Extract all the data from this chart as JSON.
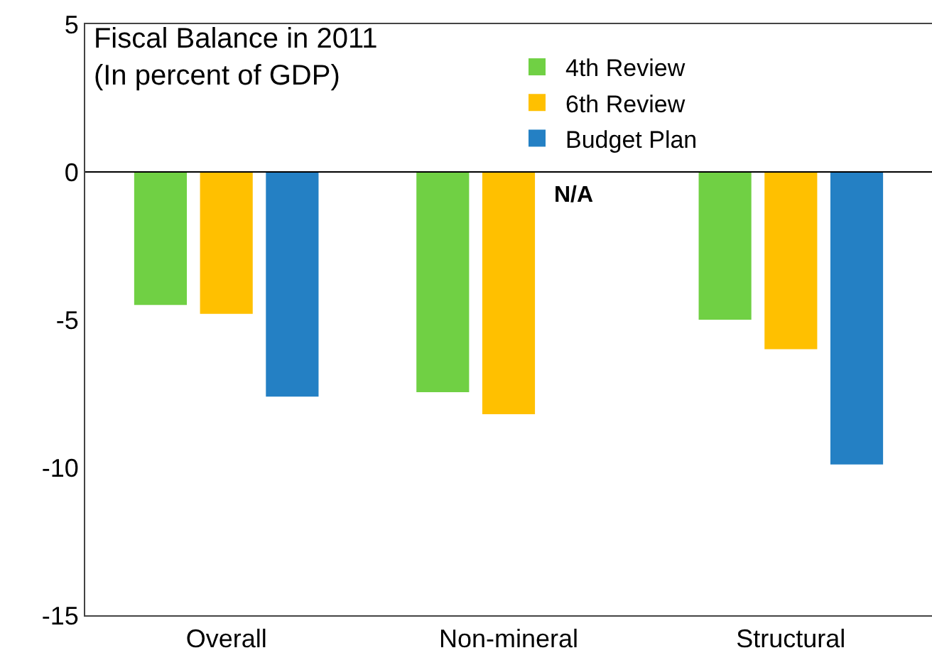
{
  "chart_data": {
    "type": "bar",
    "title": "Fiscal Balance in 2011",
    "subtitle": "(In percent of GDP)",
    "categories": [
      "Overall",
      "Non-mineral",
      "Structural"
    ],
    "series": [
      {
        "name": "4th Review",
        "color": "#70d044",
        "values": [
          -4.5,
          -7.45,
          -5.0
        ]
      },
      {
        "name": "6th Review",
        "color": "#ffc000",
        "values": [
          -4.8,
          -8.2,
          -6.0
        ]
      },
      {
        "name": "Budget Plan",
        "color": "#2480c4",
        "values": [
          -7.6,
          null,
          -9.9
        ]
      }
    ],
    "annotations": [
      "N/A"
    ],
    "ref_lines": [
      {
        "axis": "y",
        "value": 0,
        "color": "#000000"
      }
    ],
    "ylim": [
      -15,
      5
    ],
    "yticks": [
      -15,
      -10,
      -5,
      0,
      5
    ],
    "grid": false,
    "legend": "top"
  }
}
